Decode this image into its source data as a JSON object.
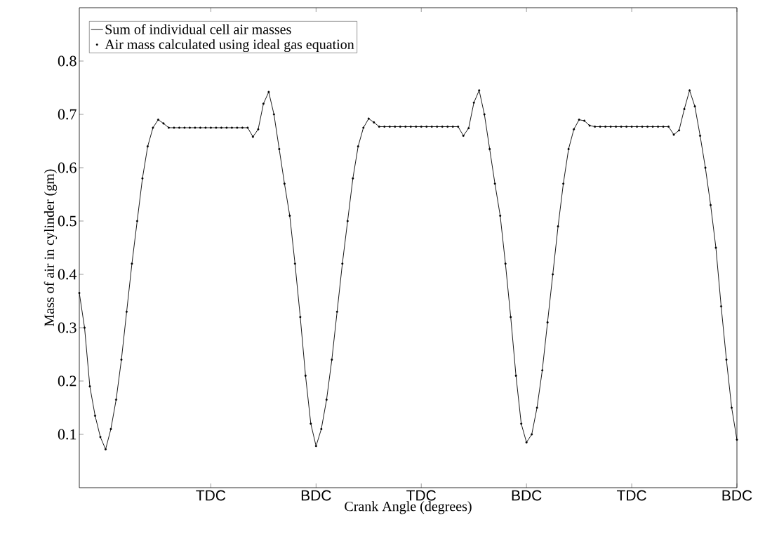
{
  "chart_data": {
    "type": "line",
    "xlabel": "Crank Angle (degrees)",
    "ylabel": "Mass of air in cylinder (gm)",
    "categories": [
      null,
      null,
      null,
      null,
      null,
      null,
      null,
      null,
      null,
      null,
      null,
      null,
      null,
      null,
      null,
      null,
      null,
      null,
      null,
      null,
      null,
      null,
      null,
      null,
      null,
      "TDC",
      null,
      null,
      null,
      null,
      null,
      null,
      null,
      null,
      null,
      null,
      null,
      null,
      null,
      null,
      null,
      null,
      null,
      null,
      null,
      "BDC",
      null,
      null,
      null,
      null,
      null,
      null,
      null,
      null,
      null,
      null,
      null,
      null,
      null,
      null,
      null,
      null,
      null,
      null,
      null,
      "TDC",
      null,
      null,
      null,
      null,
      null,
      null,
      null,
      null,
      null,
      null,
      null,
      null,
      null,
      null,
      null,
      null,
      null,
      null,
      null,
      "BDC",
      null,
      null,
      null,
      null,
      null,
      null,
      null,
      null,
      null,
      null,
      null,
      null,
      null,
      null,
      null,
      null,
      null,
      null,
      null,
      "TDC",
      null,
      null,
      null,
      null,
      null,
      null,
      null,
      null,
      null,
      null,
      null,
      null,
      null,
      null,
      null,
      null,
      null,
      null,
      null,
      "BDC"
    ],
    "series": [
      {
        "name": "Sum of individual cell air masses",
        "color": "#000000",
        "line_style": "solid",
        "marker": "none",
        "values": [
          0.365,
          0.3,
          0.19,
          0.135,
          0.095,
          0.072,
          0.11,
          0.165,
          0.24,
          0.33,
          0.42,
          0.5,
          0.58,
          0.64,
          0.675,
          0.69,
          0.683,
          0.675,
          0.675,
          0.675,
          0.675,
          0.675,
          0.675,
          0.675,
          0.675,
          0.675,
          0.675,
          0.675,
          0.675,
          0.675,
          0.675,
          0.675,
          0.675,
          0.658,
          0.672,
          0.72,
          0.742,
          0.7,
          0.635,
          0.57,
          0.51,
          0.42,
          0.32,
          0.21,
          0.12,
          0.078,
          0.11,
          0.165,
          0.24,
          0.33,
          0.42,
          0.5,
          0.58,
          0.64,
          0.675,
          0.692,
          0.685,
          0.677,
          0.677,
          0.677,
          0.677,
          0.677,
          0.677,
          0.677,
          0.677,
          0.677,
          0.677,
          0.677,
          0.677,
          0.677,
          0.677,
          0.677,
          0.677,
          0.66,
          0.674,
          0.722,
          0.745,
          0.7,
          0.635,
          0.57,
          0.51,
          0.42,
          0.32,
          0.21,
          0.12,
          0.085,
          0.1,
          0.15,
          0.22,
          0.31,
          0.4,
          0.49,
          0.57,
          0.635,
          0.672,
          0.69,
          0.688,
          0.679,
          0.677,
          0.677,
          0.677,
          0.677,
          0.677,
          0.677,
          0.677,
          0.677,
          0.677,
          0.677,
          0.677,
          0.677,
          0.677,
          0.677,
          0.677,
          0.662,
          0.67,
          0.71,
          0.745,
          0.715,
          0.66,
          0.6,
          0.53,
          0.45,
          0.34,
          0.24,
          0.15,
          0.09
        ]
      },
      {
        "name": "Air mass calculated using ideal gas equation",
        "type": "scatter",
        "color": "#000000",
        "marker": "circle",
        "values": [
          0.365,
          0.3,
          0.19,
          0.135,
          0.095,
          0.072,
          0.11,
          0.165,
          0.24,
          0.33,
          0.42,
          0.5,
          0.58,
          0.64,
          0.675,
          0.69,
          0.683,
          0.675,
          0.675,
          0.675,
          0.675,
          0.675,
          0.675,
          0.675,
          0.675,
          0.675,
          0.675,
          0.675,
          0.675,
          0.675,
          0.675,
          0.675,
          0.675,
          0.658,
          0.672,
          0.72,
          0.742,
          0.7,
          0.635,
          0.57,
          0.51,
          0.42,
          0.32,
          0.21,
          0.12,
          0.078,
          0.11,
          0.165,
          0.24,
          0.33,
          0.42,
          0.5,
          0.58,
          0.64,
          0.675,
          0.692,
          0.685,
          0.677,
          0.677,
          0.677,
          0.677,
          0.677,
          0.677,
          0.677,
          0.677,
          0.677,
          0.677,
          0.677,
          0.677,
          0.677,
          0.677,
          0.677,
          0.677,
          0.66,
          0.674,
          0.722,
          0.745,
          0.7,
          0.635,
          0.57,
          0.51,
          0.42,
          0.32,
          0.21,
          0.12,
          0.085,
          0.1,
          0.15,
          0.22,
          0.31,
          0.4,
          0.49,
          0.57,
          0.635,
          0.672,
          0.69,
          0.688,
          0.679,
          0.677,
          0.677,
          0.677,
          0.677,
          0.677,
          0.677,
          0.677,
          0.677,
          0.677,
          0.677,
          0.677,
          0.677,
          0.677,
          0.677,
          0.677,
          0.662,
          0.67,
          0.71,
          0.745,
          0.715,
          0.66,
          0.6,
          0.53,
          0.45,
          0.34,
          0.24,
          0.15,
          0.09
        ]
      }
    ],
    "ylim": [
      0,
      0.9
    ],
    "yticks": [
      0.1,
      0.2,
      0.3,
      0.4,
      0.5,
      0.6,
      0.7,
      0.8
    ],
    "legend": "top left"
  }
}
